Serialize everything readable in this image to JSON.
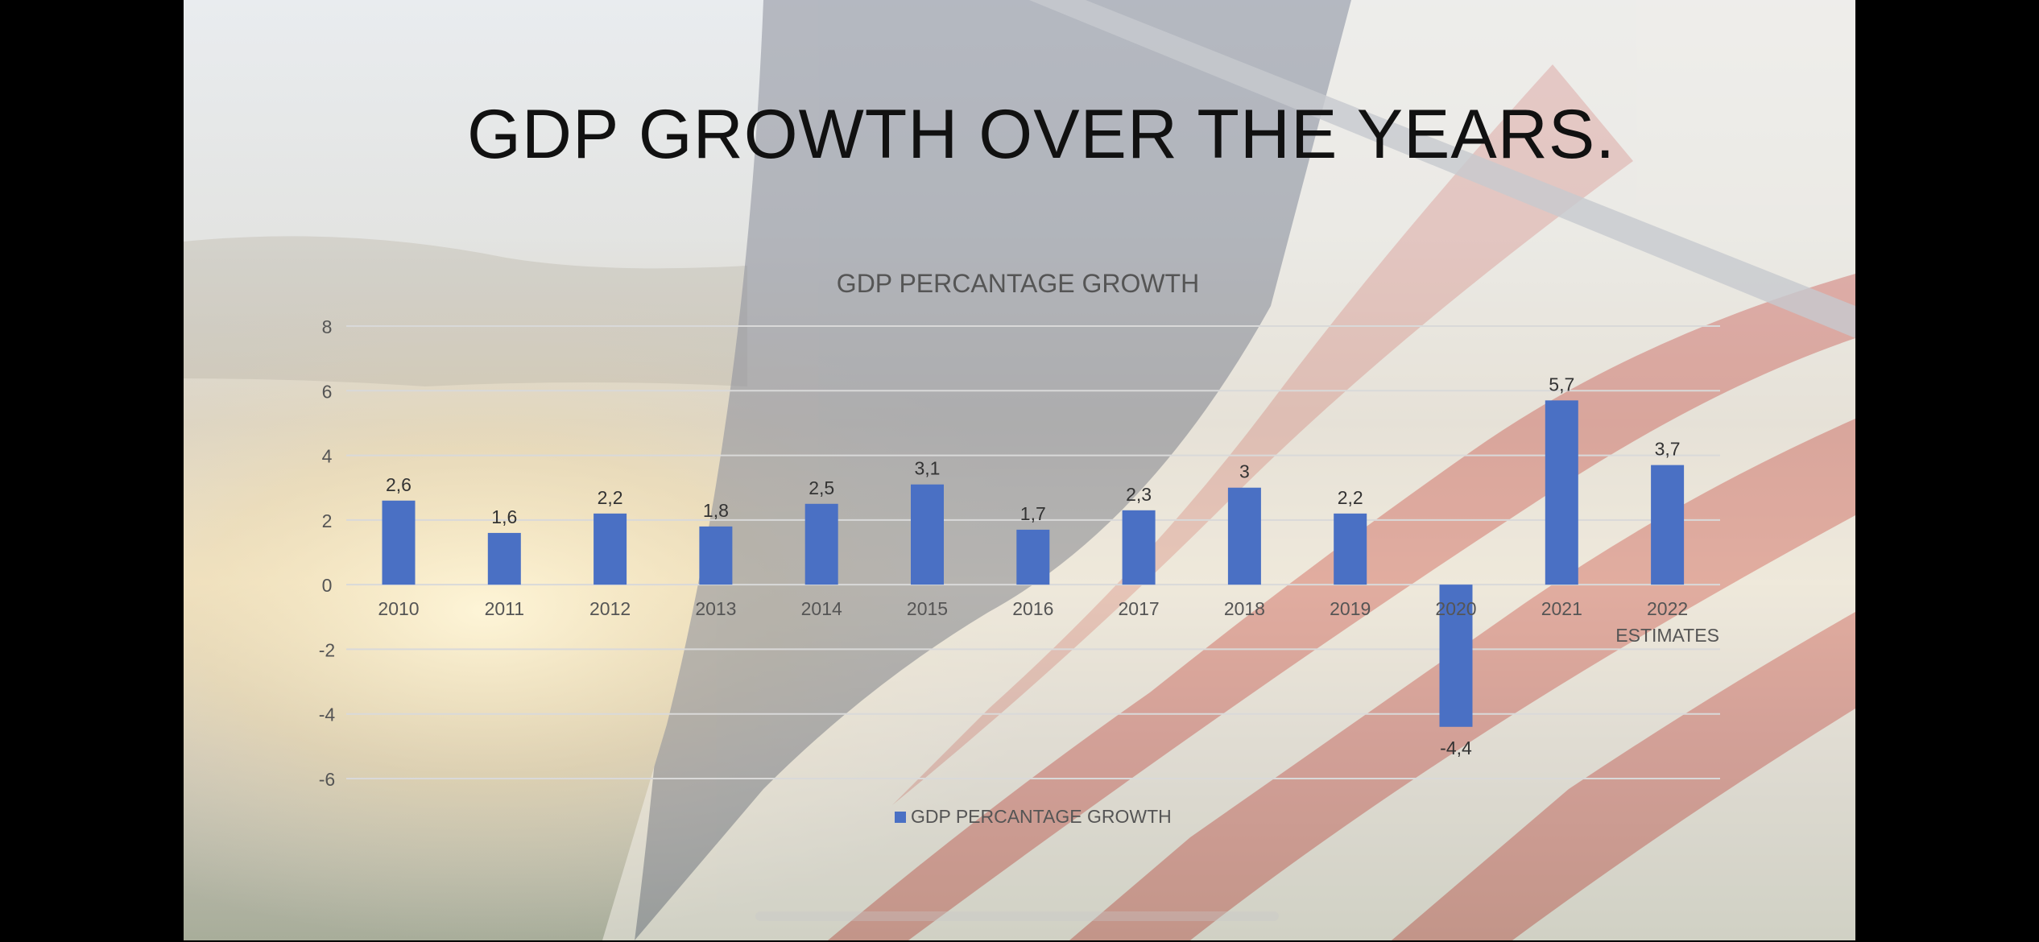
{
  "slide": {
    "title": "GDP GROWTH OVER THE YEARS."
  },
  "colors": {
    "bar": "#4a70c4",
    "gridline": "#d9d9d9",
    "text": "#555555"
  },
  "chart_data": {
    "type": "bar",
    "title": "GDP PERCANTAGE GROWTH",
    "xlabel": "",
    "ylabel": "",
    "categories": [
      "2010",
      "2011",
      "2012",
      "2013",
      "2014",
      "2015",
      "2016",
      "2017",
      "2018",
      "2019",
      "2020",
      "2021",
      "2022 ESTIMATES"
    ],
    "series": [
      {
        "name": "GDP PERCANTAGE GROWTH",
        "values": [
          2.6,
          1.6,
          2.2,
          1.8,
          2.5,
          3.1,
          1.7,
          2.3,
          3,
          2.2,
          -4.4,
          5.7,
          3.7
        ],
        "labels": [
          "2,6",
          "1,6",
          "2,2",
          "1,8",
          "2,5",
          "3,1",
          "1,7",
          "2,3",
          "3",
          "2,2",
          "-4,4",
          "5,7",
          "3,7"
        ]
      }
    ],
    "ylim": [
      -6,
      8
    ],
    "yticks": [
      "-6",
      "-4",
      "-2",
      "0",
      "2",
      "4",
      "6",
      "8"
    ],
    "grid": true,
    "legend": "bottom"
  }
}
